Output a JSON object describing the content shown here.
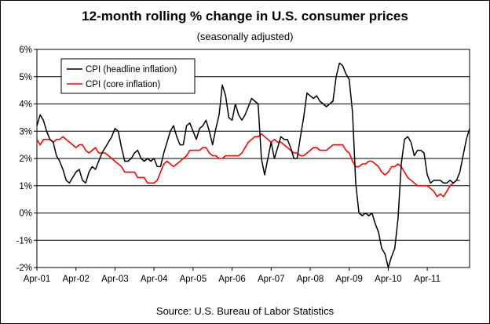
{
  "chart_data": {
    "type": "line",
    "title": "12-month rolling % change in U.S. consumer prices",
    "subtitle": "(seasonally adjusted)",
    "source": "Source: U.S. Bureau of Labor Statistics",
    "xlabel": "",
    "ylabel": "",
    "x_ticks": [
      "Apr-01",
      "Apr-02",
      "Apr-03",
      "Apr-04",
      "Apr-05",
      "Apr-06",
      "Apr-07",
      "Apr-08",
      "Apr-09",
      "Apr-10",
      "Apr-11"
    ],
    "y_ticks": [
      "-2%",
      "-1%",
      "0%",
      "1%",
      "2%",
      "3%",
      "4%",
      "5%",
      "6%"
    ],
    "ylim": [
      -2,
      6
    ],
    "grid": "horizontal",
    "legend_position": "top-left",
    "x_start": "Apr-01",
    "series": [
      {
        "name": "CPI (headline inflation)",
        "color": "#000000",
        "values": [
          3.2,
          3.6,
          3.4,
          3.0,
          2.7,
          2.6,
          2.1,
          1.9,
          1.6,
          1.2,
          1.1,
          1.3,
          1.5,
          1.6,
          1.2,
          1.1,
          1.5,
          1.7,
          1.6,
          1.9,
          2.2,
          2.4,
          2.6,
          2.8,
          3.1,
          3.0,
          2.4,
          1.9,
          1.9,
          2.0,
          2.2,
          2.3,
          2.0,
          1.9,
          2.0,
          1.9,
          2.0,
          1.7,
          1.7,
          2.2,
          2.6,
          3.0,
          3.2,
          2.8,
          2.5,
          2.5,
          3.2,
          3.3,
          3.0,
          2.7,
          3.1,
          3.2,
          3.4,
          3.0,
          2.5,
          3.1,
          3.6,
          4.7,
          4.3,
          3.5,
          3.4,
          4.0,
          3.6,
          3.4,
          3.6,
          3.9,
          4.2,
          4.1,
          4.0,
          2.0,
          1.4,
          2.0,
          2.6,
          2.0,
          2.4,
          2.8,
          2.7,
          2.7,
          2.4,
          2.0,
          2.0,
          2.8,
          3.5,
          4.4,
          4.3,
          4.2,
          4.3,
          4.1,
          4.0,
          3.9,
          4.0,
          4.1,
          5.0,
          5.5,
          5.4,
          5.1,
          4.9,
          3.7,
          1.1,
          0.0,
          -0.1,
          0.0,
          -0.1,
          0.0,
          -0.4,
          -0.7,
          -1.3,
          -1.5,
          -2.0,
          -1.6,
          -1.3,
          -0.2,
          1.8,
          2.7,
          2.8,
          2.6,
          2.1,
          2.3,
          2.3,
          2.2,
          1.4,
          1.1,
          1.2,
          1.2,
          1.2,
          1.1,
          1.1,
          1.2,
          1.1,
          1.2,
          1.5,
          2.1,
          2.7,
          3.1
        ]
      },
      {
        "name": "CPI (core inflation)",
        "color": "#ff0000",
        "values": [
          2.7,
          2.5,
          2.7,
          2.7,
          2.7,
          2.6,
          2.7,
          2.7,
          2.8,
          2.7,
          2.6,
          2.5,
          2.4,
          2.5,
          2.5,
          2.3,
          2.2,
          2.3,
          2.4,
          2.2,
          2.2,
          2.2,
          2.1,
          2.0,
          1.9,
          1.8,
          1.7,
          1.5,
          1.5,
          1.5,
          1.5,
          1.3,
          1.3,
          1.3,
          1.1,
          1.1,
          1.1,
          1.2,
          1.5,
          1.8,
          1.9,
          1.8,
          1.7,
          1.8,
          1.9,
          2.0,
          2.1,
          2.3,
          2.3,
          2.3,
          2.3,
          2.4,
          2.4,
          2.2,
          2.1,
          2.1,
          2.0,
          2.0,
          2.1,
          2.1,
          2.1,
          2.1,
          2.1,
          2.2,
          2.4,
          2.6,
          2.7,
          2.8,
          2.8,
          2.9,
          2.8,
          2.7,
          2.6,
          2.7,
          2.6,
          2.6,
          2.5,
          2.4,
          2.3,
          2.2,
          2.2,
          2.1,
          2.1,
          2.2,
          2.3,
          2.4,
          2.4,
          2.3,
          2.3,
          2.3,
          2.4,
          2.5,
          2.5,
          2.5,
          2.5,
          2.3,
          2.2,
          1.9,
          1.7,
          1.7,
          1.8,
          1.8,
          1.9,
          1.9,
          1.8,
          1.7,
          1.5,
          1.4,
          1.5,
          1.7,
          1.7,
          1.8,
          1.7,
          1.5,
          1.3,
          1.2,
          1.1,
          1.0,
          1.0,
          1.0,
          1.0,
          0.9,
          0.8,
          0.6,
          0.7,
          0.6,
          0.8,
          1.0,
          1.1,
          1.2,
          1.2
        ]
      }
    ]
  }
}
